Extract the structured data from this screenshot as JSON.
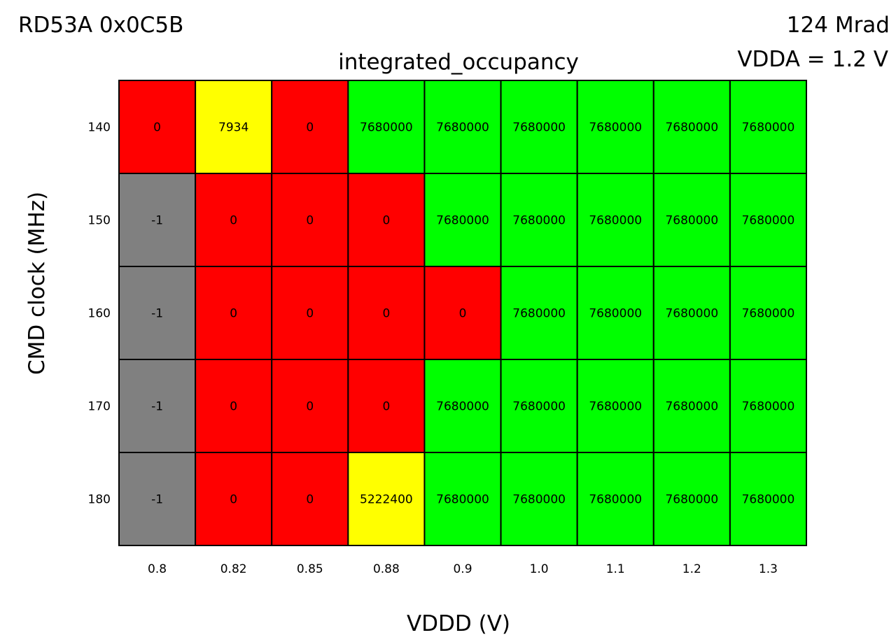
{
  "header": {
    "chip": "RD53A 0x0C5B",
    "dose": "124 Mrad",
    "vdda": "VDDA = 1.2 V"
  },
  "chart_data": {
    "type": "heatmap",
    "title": "integrated_occupancy",
    "xlabel": "VDDD (V)",
    "ylabel": "CMD clock (MHz)",
    "x": [
      "0.8",
      "0.82",
      "0.85",
      "0.88",
      "0.9",
      "1.0",
      "1.1",
      "1.2",
      "1.3"
    ],
    "y": [
      "140",
      "150",
      "160",
      "170",
      "180"
    ],
    "values": [
      [
        0,
        7934,
        0,
        7680000,
        7680000,
        7680000,
        7680000,
        7680000,
        7680000
      ],
      [
        -1,
        0,
        0,
        0,
        7680000,
        7680000,
        7680000,
        7680000,
        7680000
      ],
      [
        -1,
        0,
        0,
        0,
        0,
        7680000,
        7680000,
        7680000,
        7680000
      ],
      [
        -1,
        0,
        0,
        0,
        7680000,
        7680000,
        7680000,
        7680000,
        7680000
      ],
      [
        -1,
        0,
        0,
        5222400,
        7680000,
        7680000,
        7680000,
        7680000,
        7680000
      ]
    ],
    "colors": {
      "no_data": "#808080",
      "zero": "#ff0000",
      "partial": "#ffff00",
      "full": "#00ff00",
      "grid": "#000000"
    },
    "full_value": 7680000
  }
}
